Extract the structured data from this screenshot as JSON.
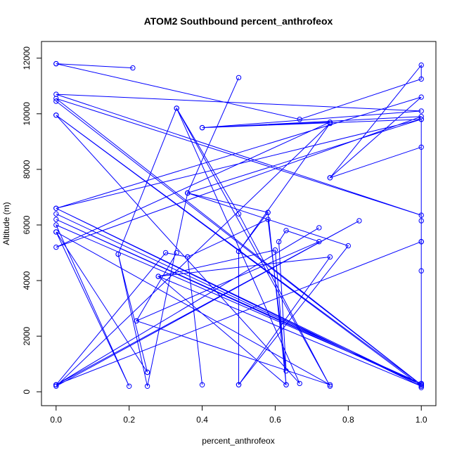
{
  "chart_data": {
    "type": "line",
    "title": "ATOM2 Southbound percent_anthrofeox",
    "xlabel": "percent_anthrofeox",
    "ylabel": "Altitude (m)",
    "xlim": [
      -0.04,
      1.04
    ],
    "ylim": [
      -500,
      12600
    ],
    "x_ticks": [
      0.0,
      0.2,
      0.4,
      0.6,
      0.8,
      1.0
    ],
    "x_tick_labels": [
      "0.0",
      "0.2",
      "0.4",
      "0.6",
      "0.8",
      "1.0"
    ],
    "y_ticks": [
      0,
      2000,
      4000,
      6000,
      8000,
      10000,
      12000
    ],
    "y_tick_labels": [
      "0",
      "2000",
      "4000",
      "6000",
      "8000",
      "10000",
      "12000"
    ],
    "grid": false,
    "legend": "none",
    "series_color": "#0000ff",
    "marker": "open-circle",
    "series": [
      {
        "points": [
          [
            0.0,
            11800
          ],
          [
            0.21,
            11650
          ],
          [
            0.0,
            11800
          ],
          [
            0.667,
            9800
          ],
          [
            1.0,
            11250
          ],
          [
            1.0,
            11750
          ],
          [
            0.75,
            7700
          ],
          [
            1.0,
            8800
          ],
          [
            0.75,
            7700
          ],
          [
            1.0,
            10600
          ],
          [
            0.0,
            6600
          ],
          [
            1.0,
            9800
          ],
          [
            0.4,
            9500
          ],
          [
            0.75,
            9700
          ],
          [
            0.0,
            5200
          ],
          [
            1.0,
            9900
          ],
          [
            0.4,
            9500
          ],
          [
            1.0,
            10100
          ],
          [
            0.0,
            10700
          ],
          [
            1.0,
            6350
          ],
          [
            0.0,
            10550
          ],
          [
            1.0,
            250
          ],
          [
            0.0,
            10450
          ],
          [
            1.0,
            250
          ],
          [
            0.0,
            9950
          ],
          [
            1.0,
            200
          ],
          [
            0.0,
            9950
          ],
          [
            0.667,
            300
          ],
          [
            0.33,
            10200
          ],
          [
            0.5,
            6400
          ],
          [
            0.75,
            200
          ],
          [
            0.33,
            10200
          ],
          [
            0.17,
            4950
          ],
          [
            0.25,
            700
          ],
          [
            0.17,
            4950
          ],
          [
            0.25,
            200
          ],
          [
            0.36,
            7150
          ],
          [
            0.5,
            11300
          ],
          [
            0.36,
            7150
          ],
          [
            0.58,
            6450
          ],
          [
            0.63,
            250
          ],
          [
            0.58,
            6450
          ],
          [
            0.5,
            5050
          ],
          [
            0.5,
            250
          ],
          [
            0.5,
            5050
          ],
          [
            0.75,
            9650
          ],
          [
            0.0,
            200
          ],
          [
            0.83,
            6150
          ],
          [
            0.0,
            250
          ],
          [
            1.0,
            5400
          ],
          [
            0.0,
            250
          ],
          [
            0.72,
            5900
          ],
          [
            0.0,
            250
          ],
          [
            0.3,
            5000
          ],
          [
            0.36,
            4850
          ],
          [
            0.4,
            250
          ],
          [
            0.36,
            4850
          ],
          [
            0.58,
            6200
          ],
          [
            0.63,
            750
          ],
          [
            0.61,
            5400
          ],
          [
            0.63,
            5800
          ],
          [
            0.72,
            5400
          ],
          [
            0.22,
            2550
          ],
          [
            0.33,
            5000
          ],
          [
            0.22,
            2550
          ],
          [
            0.75,
            250
          ],
          [
            0.0,
            5750
          ],
          [
            0.25,
            700
          ],
          [
            0.0,
            5750
          ],
          [
            0.2,
            200
          ],
          [
            0.0,
            6000
          ],
          [
            1.0,
            300
          ],
          [
            0.0,
            6200
          ],
          [
            1.0,
            250
          ],
          [
            0.0,
            6400
          ],
          [
            1.0,
            250
          ],
          [
            0.0,
            6600
          ],
          [
            1.0,
            200
          ],
          [
            0.28,
            4150
          ],
          [
            0.6,
            5100
          ],
          [
            0.63,
            250
          ],
          [
            0.28,
            4150
          ],
          [
            0.75,
            4850
          ],
          [
            0.5,
            250
          ],
          [
            0.8,
            5250
          ],
          [
            0.36,
            7150
          ],
          [
            1.0,
            9800
          ],
          [
            1.0,
            5400
          ],
          [
            1.0,
            4350
          ],
          [
            1.0,
            300
          ],
          [
            1.0,
            6150
          ],
          [
            1.0,
            150
          ]
        ]
      }
    ]
  }
}
